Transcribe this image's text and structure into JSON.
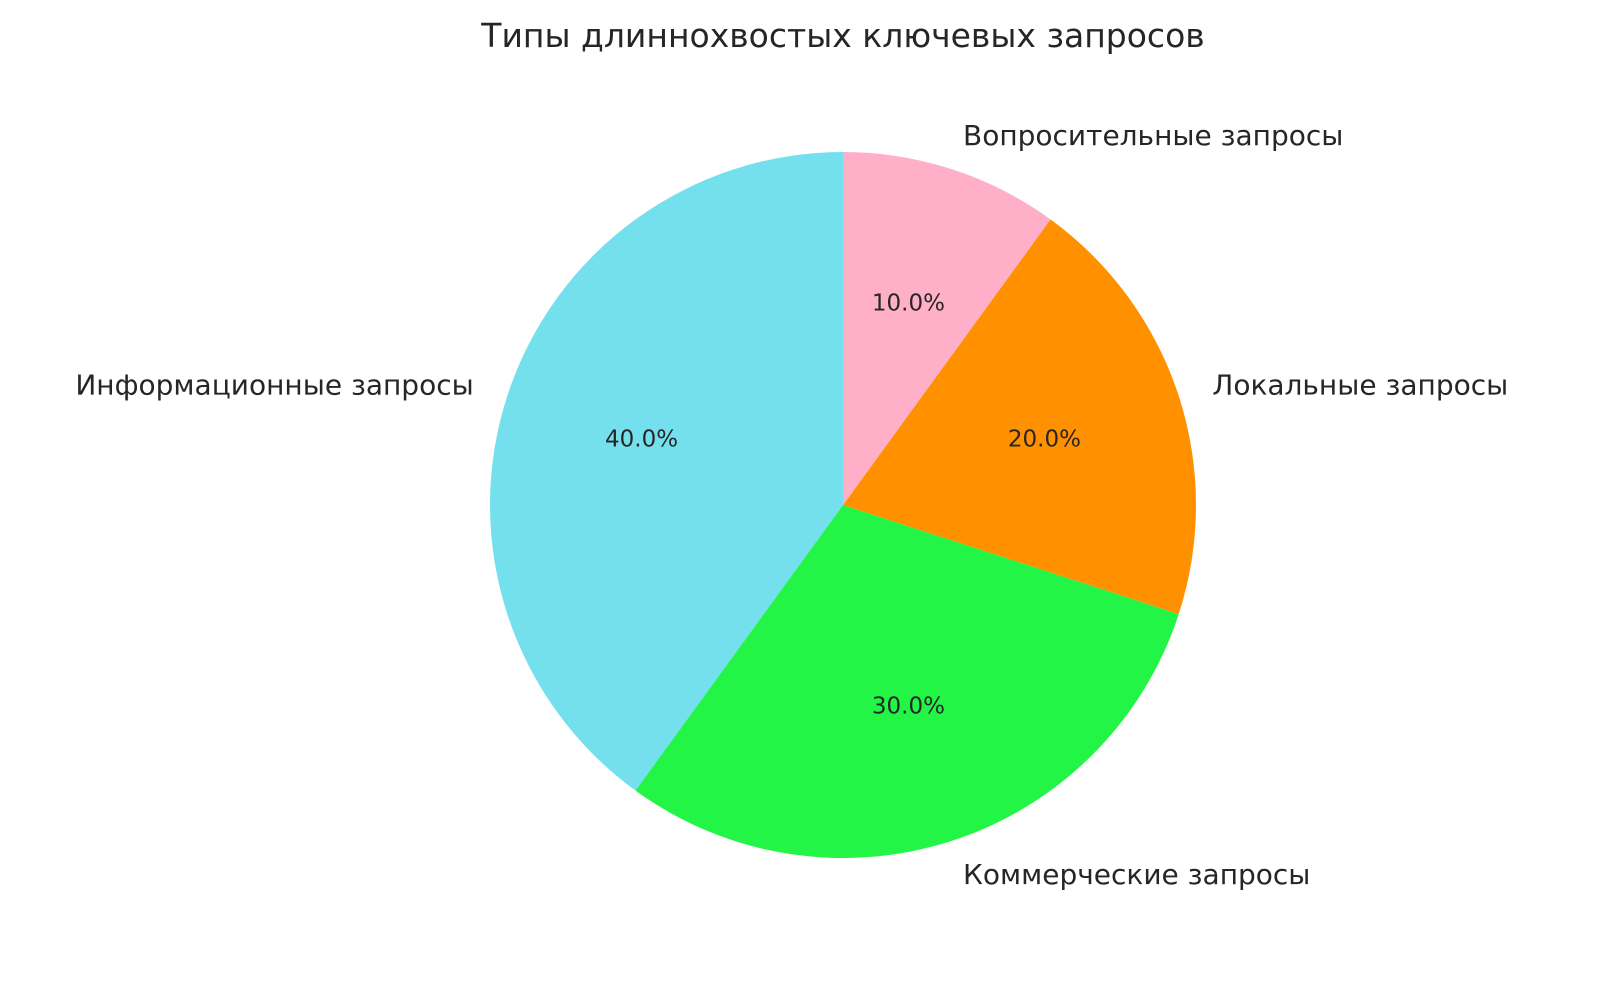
{
  "chart_data": {
    "type": "pie",
    "title": "Типы длиннохвостых ключевых запросов",
    "categories": [
      "Информационные запросы",
      "Коммерческие запросы",
      "Локальные запросы",
      "Вопросительные запросы"
    ],
    "values": [
      40,
      30,
      20,
      10
    ],
    "value_labels": [
      "40.0%",
      "30.0%",
      "20.0%",
      "10.0%"
    ],
    "colors": [
      "#74e0ee",
      "#22f546",
      "#ff9100",
      "#ffb0c8"
    ],
    "start_angle": 90,
    "direction": "counterclockwise"
  }
}
